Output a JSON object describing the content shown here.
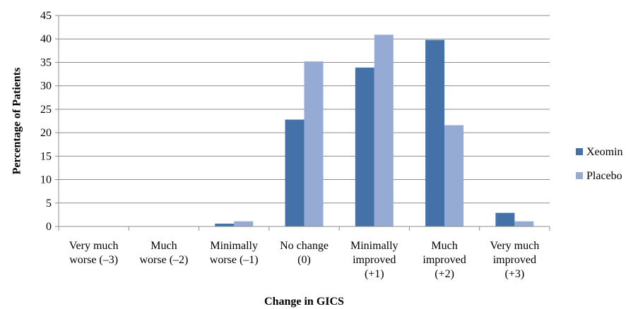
{
  "chart_data": {
    "type": "bar",
    "title": "",
    "xlabel": "Change in GICS",
    "ylabel": "Percentage of  Patients",
    "ylim": [
      0,
      45
    ],
    "yticks": [
      0,
      5,
      10,
      15,
      20,
      25,
      30,
      35,
      40,
      45
    ],
    "categories": [
      [
        "Very much",
        "worse (–3)"
      ],
      [
        "Much",
        "worse (–2)"
      ],
      [
        "Minimally",
        "worse (–1)"
      ],
      [
        "No change",
        "(0)"
      ],
      [
        "Minimally",
        "improved",
        "(+1)"
      ],
      [
        "Much",
        "improved",
        "(+2)"
      ],
      [
        "Very much",
        "improved",
        "(+3)"
      ]
    ],
    "series": [
      {
        "name": "Xeomin",
        "color": "#4472A8",
        "values": [
          0,
          0,
          0.6,
          22.8,
          33.9,
          39.8,
          2.9
        ]
      },
      {
        "name": "Placebo",
        "color": "#95ABD3",
        "values": [
          0,
          0,
          1.1,
          35.2,
          40.9,
          21.6,
          1.1
        ]
      }
    ],
    "grid": true,
    "legend_position": "right"
  }
}
